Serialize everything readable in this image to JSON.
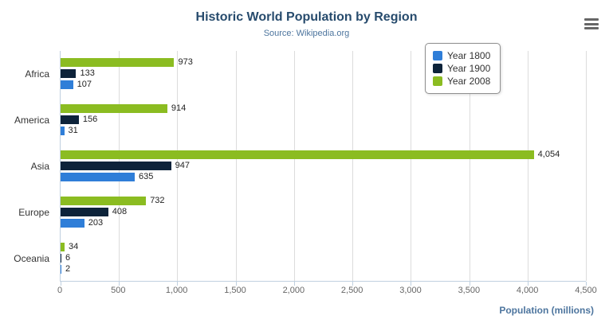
{
  "chart_data": {
    "type": "bar",
    "title": "Historic World Population by Region",
    "subtitle": "Source: Wikipedia.org",
    "categories": [
      "Africa",
      "America",
      "Asia",
      "Europe",
      "Oceania"
    ],
    "series": [
      {
        "name": "Year 1800",
        "color": "#2f7ed8",
        "values": [
          107,
          31,
          635,
          203,
          2
        ]
      },
      {
        "name": "Year 1900",
        "color": "#0d233a",
        "values": [
          133,
          156,
          947,
          408,
          6
        ]
      },
      {
        "name": "Year 2008",
        "color": "#8bbc21",
        "values": [
          973,
          914,
          4054,
          732,
          34
        ]
      }
    ],
    "bar_order_top_to_bottom": [
      "Year 2008",
      "Year 1900",
      "Year 1800"
    ],
    "xlabel": "Population (millions)",
    "xlim": [
      0,
      4500
    ],
    "xticks": [
      0,
      500,
      1000,
      1500,
      2000,
      2500,
      3000,
      3500,
      4000,
      4500
    ],
    "grid": true,
    "legend_position": "right"
  },
  "header": {
    "menu_icon": "hamburger-icon"
  }
}
